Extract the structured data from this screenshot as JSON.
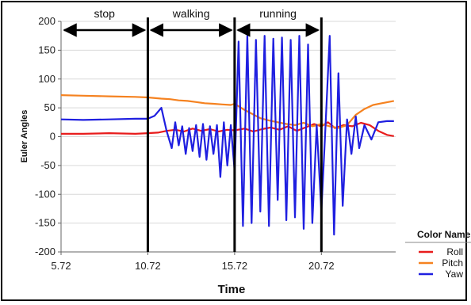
{
  "chart_data": {
    "type": "line",
    "xlabel": "Time",
    "ylabel": "Euler Angles",
    "xlim": [
      5.72,
      25.0
    ],
    "ylim": [
      -200,
      200
    ],
    "x_ticks": [
      "5.72",
      "10.72",
      "15.72",
      "20.72"
    ],
    "x_tick_values": [
      5.72,
      10.72,
      15.72,
      20.72
    ],
    "y_ticks": [
      200,
      150,
      100,
      50,
      0,
      -50,
      -100,
      -150,
      -200
    ],
    "grid": "horizontal",
    "legend_title": "Color Name",
    "legend_position": "bottom-right",
    "phases": [
      {
        "label": "stop",
        "start": 5.72,
        "end": 10.72
      },
      {
        "label": "walking",
        "start": 10.72,
        "end": 15.72
      },
      {
        "label": "running",
        "start": 15.72,
        "end": 20.72
      }
    ],
    "phase_boundaries": [
      10.72,
      15.72,
      20.72
    ],
    "series": [
      {
        "name": "Roll",
        "color": "#e81c1c",
        "x": [
          5.72,
          7.0,
          8.5,
          10.0,
          10.72,
          11.3,
          11.8,
          12.3,
          12.8,
          13.3,
          13.8,
          14.3,
          14.8,
          15.3,
          15.72,
          16.3,
          16.8,
          17.3,
          17.8,
          18.3,
          18.8,
          19.3,
          19.8,
          20.3,
          20.72,
          21.1,
          21.5,
          22.0,
          22.5,
          23.0,
          23.5,
          24.0,
          24.5,
          24.9
        ],
        "y": [
          5,
          5,
          6,
          5,
          6,
          7,
          10,
          12,
          9,
          14,
          10,
          13,
          9,
          12,
          11,
          14,
          9,
          13,
          16,
          12,
          18,
          10,
          16,
          22,
          18,
          25,
          15,
          20,
          18,
          24,
          20,
          10,
          3,
          1
        ]
      },
      {
        "name": "Pitch",
        "color": "#f58220",
        "x": [
          5.72,
          7.0,
          8.5,
          10.0,
          10.72,
          11.5,
          12.0,
          12.5,
          13.0,
          13.5,
          14.0,
          14.5,
          15.0,
          15.5,
          15.72,
          16.2,
          16.7,
          17.2,
          17.7,
          18.2,
          18.7,
          19.2,
          19.7,
          20.2,
          20.72,
          21.2,
          21.7,
          22.2,
          22.7,
          23.2,
          23.7,
          24.2,
          24.9
        ],
        "y": [
          72,
          71,
          70,
          69,
          68,
          66,
          65,
          63,
          62,
          60,
          58,
          57,
          56,
          55,
          57,
          48,
          40,
          32,
          28,
          25,
          22,
          20,
          24,
          18,
          22,
          18,
          15,
          20,
          38,
          48,
          55,
          58,
          62
        ]
      },
      {
        "name": "Yaw",
        "color": "#1f1fe0",
        "x": [
          5.72,
          7.0,
          8.5,
          10.0,
          10.72,
          11.1,
          11.5,
          11.8,
          12.1,
          12.3,
          12.5,
          12.7,
          12.9,
          13.1,
          13.3,
          13.5,
          13.7,
          13.9,
          14.1,
          14.3,
          14.5,
          14.7,
          14.9,
          15.1,
          15.3,
          15.5,
          15.72,
          15.95,
          16.2,
          16.45,
          16.7,
          16.95,
          17.2,
          17.45,
          17.7,
          17.95,
          18.2,
          18.45,
          18.7,
          18.95,
          19.2,
          19.45,
          19.7,
          19.95,
          20.2,
          20.45,
          20.72,
          20.95,
          21.2,
          21.45,
          21.7,
          21.95,
          22.2,
          22.45,
          22.7,
          22.9,
          23.2,
          23.6,
          24.0,
          24.5,
          24.9
        ],
        "y": [
          30,
          29,
          30,
          31,
          31,
          36,
          50,
          10,
          -20,
          25,
          -15,
          18,
          -30,
          15,
          -25,
          20,
          -35,
          22,
          -40,
          18,
          -30,
          20,
          -70,
          25,
          -50,
          20,
          -60,
          165,
          -155,
          175,
          -150,
          168,
          -130,
          175,
          -155,
          170,
          -110,
          172,
          -145,
          168,
          -140,
          175,
          -160,
          160,
          -150,
          20,
          -130,
          15,
          175,
          -170,
          110,
          -120,
          30,
          -30,
          35,
          -20,
          20,
          -5,
          25,
          27,
          27
        ]
      }
    ]
  }
}
